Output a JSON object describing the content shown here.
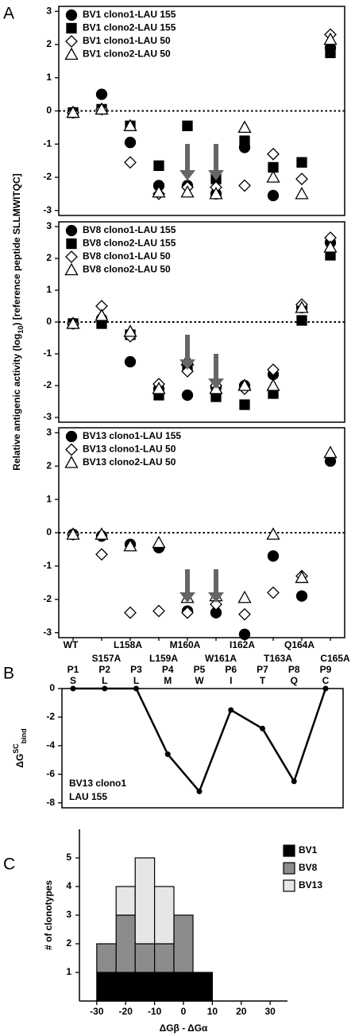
{
  "chart_data": [
    {
      "type": "scatter",
      "panel": "A",
      "ylabel": [
        "Relative antigenic activity (log",
        "10",
        ") [reference peptide SLLMWITQC]"
      ],
      "ylim": [
        -3.15,
        3.15
      ],
      "yticks": [
        -3,
        -2,
        -1,
        0,
        1,
        2,
        3
      ],
      "reference_line": 0,
      "legend": "upper left",
      "series": [
        {
          "name": "BV1 clono1-LAU 155",
          "marker": "circle",
          "color": "#000000",
          "fill": "#000000",
          "values": [
            -0.05,
            0.5,
            -0.95,
            -2.25,
            -2.25,
            -2.5,
            -1.1,
            -2.55,
            null,
            1.9
          ]
        },
        {
          "name": "BV1 clono2-LAU 155",
          "marker": "square",
          "color": "#000000",
          "fill": "#000000",
          "values": [
            -0.05,
            0.05,
            -0.45,
            -1.65,
            -0.45,
            -2.05,
            -0.9,
            -1.7,
            -1.55,
            1.75
          ]
        },
        {
          "name": "BV1 clono1-LAU 50",
          "marker": "diamond",
          "color": "#000000",
          "fill": "#ffffff",
          "values": [
            -0.05,
            0.05,
            -1.55,
            -2.5,
            -2.3,
            -2.3,
            -2.25,
            -1.3,
            -2.05,
            2.3
          ]
        },
        {
          "name": "BV1 clono2-LAU 50",
          "marker": "triangle",
          "color": "#000000",
          "fill": "#ffffff",
          "values": [
            -0.05,
            0.05,
            -0.45,
            -2.45,
            -2.45,
            -2.5,
            -0.5,
            -2.0,
            -2.5,
            2.15
          ]
        }
      ]
    },
    {
      "type": "scatter",
      "ylim": [
        -3.15,
        3.15
      ],
      "yticks": [
        -3,
        -2,
        -1,
        0,
        1,
        2,
        3
      ],
      "reference_line": 0,
      "legend": "upper left",
      "series": [
        {
          "name": "BV8 clono1-LAU 155",
          "marker": "circle",
          "color": "#000000",
          "fill": "#000000",
          "values": [
            -0.05,
            0.1,
            -1.25,
            -2.1,
            -2.3,
            -2.05,
            -2.0,
            -1.65,
            0.45,
            2.5
          ]
        },
        {
          "name": "BV8 clono2-LAU 155",
          "marker": "square",
          "color": "#000000",
          "fill": "#000000",
          "values": [
            -0.05,
            -0.05,
            -0.4,
            -2.3,
            -1.35,
            -2.35,
            -2.6,
            -2.25,
            0.05,
            2.1
          ]
        },
        {
          "name": "BV8 clono1-LAU 50",
          "marker": "diamond",
          "color": "#000000",
          "fill": "#ffffff",
          "values": [
            -0.05,
            0.5,
            -0.45,
            -1.95,
            -1.55,
            -2.0,
            -2.1,
            -1.5,
            0.55,
            2.65
          ]
        },
        {
          "name": "BV8 clono2-LAU 50",
          "marker": "triangle",
          "color": "#000000",
          "fill": "#ffffff",
          "values": [
            -0.05,
            0.2,
            -0.3,
            -2.1,
            -1.2,
            -2.1,
            -2.0,
            -2.0,
            0.45,
            2.35
          ]
        }
      ]
    },
    {
      "type": "scatter",
      "categories": [
        "WT",
        "S157A",
        "L158A",
        "L159A",
        "M160A",
        "W161A",
        "I162A",
        "T163A",
        "Q164A",
        "C165A"
      ],
      "ylim": [
        -3.15,
        3.15
      ],
      "yticks": [
        -3,
        -2,
        -1,
        0,
        1,
        2,
        3
      ],
      "reference_line": 0,
      "legend": "upper left",
      "series": [
        {
          "name": "BV13 clono1-LAU 155",
          "marker": "circle",
          "color": "#000000",
          "fill": "#000000",
          "values": [
            -0.05,
            -0.1,
            -0.35,
            -0.45,
            -2.35,
            -2.4,
            -3.05,
            -0.7,
            -1.9,
            2.15
          ]
        },
        {
          "name": "BV13 clono1-LAU 50",
          "marker": "diamond",
          "color": "#000000",
          "fill": "#ffffff",
          "values": [
            -0.05,
            -0.65,
            -2.4,
            -2.35,
            -2.4,
            -2.15,
            -2.45,
            -1.8,
            -1.3,
            null
          ]
        },
        {
          "name": "BV13 clono2-LAU 50",
          "marker": "triangle",
          "color": "#000000",
          "fill": "#ffffff",
          "values": [
            -0.05,
            -0.05,
            -0.4,
            -0.3,
            -1.95,
            -1.9,
            -1.95,
            -0.05,
            -1.35,
            2.4
          ]
        }
      ]
    },
    {
      "type": "line",
      "panel": "B",
      "categories": [
        "P1",
        "P2",
        "P3",
        "P4",
        "P5",
        "P6",
        "P7",
        "P8",
        "P9"
      ],
      "residues": [
        "S",
        "L",
        "L",
        "M",
        "W",
        "I",
        "T",
        "Q",
        "C"
      ],
      "values": [
        0,
        0,
        0,
        -4.6,
        -7.2,
        -1.5,
        -2.8,
        -6.5,
        0
      ],
      "color": "#000000",
      "ylabel": [
        "ΔG",
        "SC",
        "bind"
      ],
      "ylim": [
        -8.35,
        0
      ],
      "yticks": [
        0,
        -2,
        -4,
        -6,
        -8
      ],
      "annotation": [
        "BV13 clono1",
        "LAU 155"
      ]
    },
    {
      "type": "histogram",
      "panel": "C",
      "bins": [
        -30,
        -23.3,
        -16.7,
        -10,
        -3.3,
        3.3,
        10
      ],
      "series": [
        {
          "name": "BV1",
          "color": "#000000",
          "values": [
            1,
            1,
            1,
            1,
            1,
            1
          ]
        },
        {
          "name": "BV8",
          "color": "#8c8c8c",
          "values": [
            1,
            2,
            1,
            1,
            2,
            0
          ]
        },
        {
          "name": "BV13",
          "color": "#e6e6e6",
          "values": [
            0,
            1,
            3,
            2,
            0,
            0
          ]
        }
      ],
      "xlim": [
        -36,
        36
      ],
      "xticks": [
        -30,
        -20,
        -10,
        0,
        10,
        20,
        30
      ],
      "ylim": [
        0,
        6
      ],
      "yticks": [
        1,
        2,
        3,
        4,
        5
      ],
      "xlabel": "ΔGβ - ΔGα",
      "ylabel": "# of clonotypes",
      "legend": "upper right"
    }
  ]
}
